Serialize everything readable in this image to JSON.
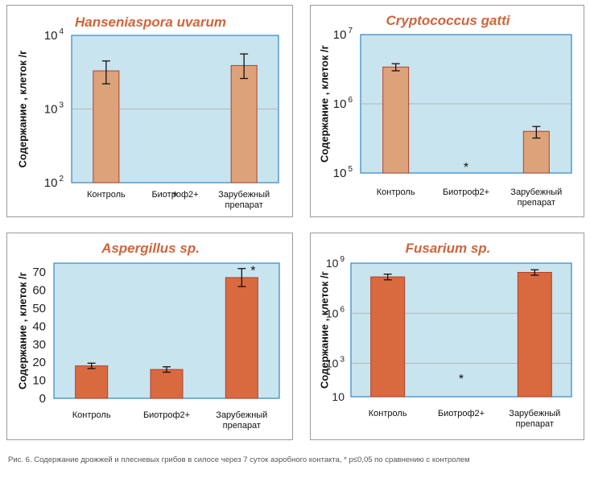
{
  "caption": "Рис. 6. Содержание дрожжей и плесневых грибов в силосе через 7 суток аэробного контакта, * p≤0,05 по сравнению с контролем",
  "colors": {
    "plot_background": "#c8e4ee",
    "plot_border": "#2f86c7",
    "title": "#d0643a",
    "bar_light": "#dca27a",
    "bar_dark": "#d96a40",
    "bar_edge": "#b0402a",
    "gridline": "#aaaaaa"
  },
  "chart_data": [
    {
      "type": "bar",
      "title": "Hanseniaspora uvarum",
      "ylabel": "Содержание , клеток /г",
      "yscale": "log",
      "ylim": [
        100,
        10000
      ],
      "yticks": [
        {
          "value": 100,
          "base": "10",
          "exp": "2"
        },
        {
          "value": 1000,
          "base": "10",
          "exp": "3"
        },
        {
          "value": 10000,
          "base": "10",
          "exp": "4"
        }
      ],
      "grid": true,
      "bar_color": "#dca27a",
      "categories": [
        [
          "Контроль"
        ],
        [
          "Биотроф2+"
        ],
        [
          "Зарубежный",
          "препарат"
        ]
      ],
      "values": [
        3300,
        null,
        3900
      ],
      "errors": [
        [
          2200,
          4500
        ],
        null,
        [
          2600,
          5600
        ]
      ],
      "markers": [
        null,
        {
          "text": "*",
          "y": 70
        },
        null
      ]
    },
    {
      "type": "bar",
      "title": "Cryptococcus gatti",
      "ylabel": "Содержание , клеток /г",
      "yscale": "log",
      "ylim": [
        100000,
        10000000
      ],
      "yticks": [
        {
          "value": 100000,
          "base": "10",
          "exp": "5"
        },
        {
          "value": 1000000,
          "base": "10",
          "exp": "6"
        },
        {
          "value": 10000000,
          "base": "10",
          "exp": "7"
        }
      ],
      "grid": true,
      "bar_color": "#dca27a",
      "categories": [
        [
          "Контроль"
        ],
        [
          "Биотроф2+"
        ],
        [
          "Зарубежный",
          "препарат"
        ]
      ],
      "values": [
        3400000,
        null,
        400000
      ],
      "errors": [
        [
          3000000,
          3800000
        ],
        null,
        [
          320000,
          470000
        ]
      ],
      "markers": [
        null,
        {
          "text": "*",
          "y": 130000
        },
        null
      ]
    },
    {
      "type": "bar",
      "title": "Aspergillus sp.",
      "ylabel": "Содержание , клеток /г",
      "yscale": "linear",
      "ylim": [
        0,
        75
      ],
      "yticks": [
        {
          "value": 0,
          "label": "0"
        },
        {
          "value": 10,
          "label": "10"
        },
        {
          "value": 20,
          "label": "20"
        },
        {
          "value": 30,
          "label": "30"
        },
        {
          "value": 40,
          "label": "40"
        },
        {
          "value": 50,
          "label": "50"
        },
        {
          "value": 60,
          "label": "60"
        },
        {
          "value": 70,
          "label": "70"
        }
      ],
      "grid": false,
      "bar_color": "#d96a40",
      "categories": [
        [
          "Контроль"
        ],
        [
          "Биотроф2+"
        ],
        [
          "Зарубежный",
          "препарат"
        ]
      ],
      "values": [
        18,
        16,
        67
      ],
      "errors": [
        [
          16.5,
          19.5
        ],
        [
          14.5,
          17.5
        ],
        [
          62,
          72
        ]
      ],
      "markers": [
        null,
        null,
        {
          "text": "*",
          "y": 72
        }
      ]
    },
    {
      "type": "bar",
      "title": "Fusarium sp.",
      "ylabel": "Содержание , клеток /г",
      "yscale": "log",
      "ylim": [
        10,
        1000000000
      ],
      "yticks": [
        {
          "value": 10,
          "label": "10"
        },
        {
          "value": 1000,
          "base": "10",
          "exp": "3"
        },
        {
          "value": 1000000,
          "base": "10",
          "exp": "6"
        },
        {
          "value": 1000000000,
          "base": "10",
          "exp": "9"
        }
      ],
      "grid": true,
      "bar_color": "#d96a40",
      "categories": [
        [
          "Контроль"
        ],
        [
          "Биотроф2+"
        ],
        [
          "Зарубежный",
          "препарат"
        ]
      ],
      "values": [
        150000000,
        null,
        280000000
      ],
      "errors": [
        [
          100000000,
          220000000
        ],
        null,
        [
          190000000,
          400000000
        ]
      ],
      "markers": [
        null,
        {
          "text": "*",
          "y": 160
        },
        null
      ]
    }
  ]
}
